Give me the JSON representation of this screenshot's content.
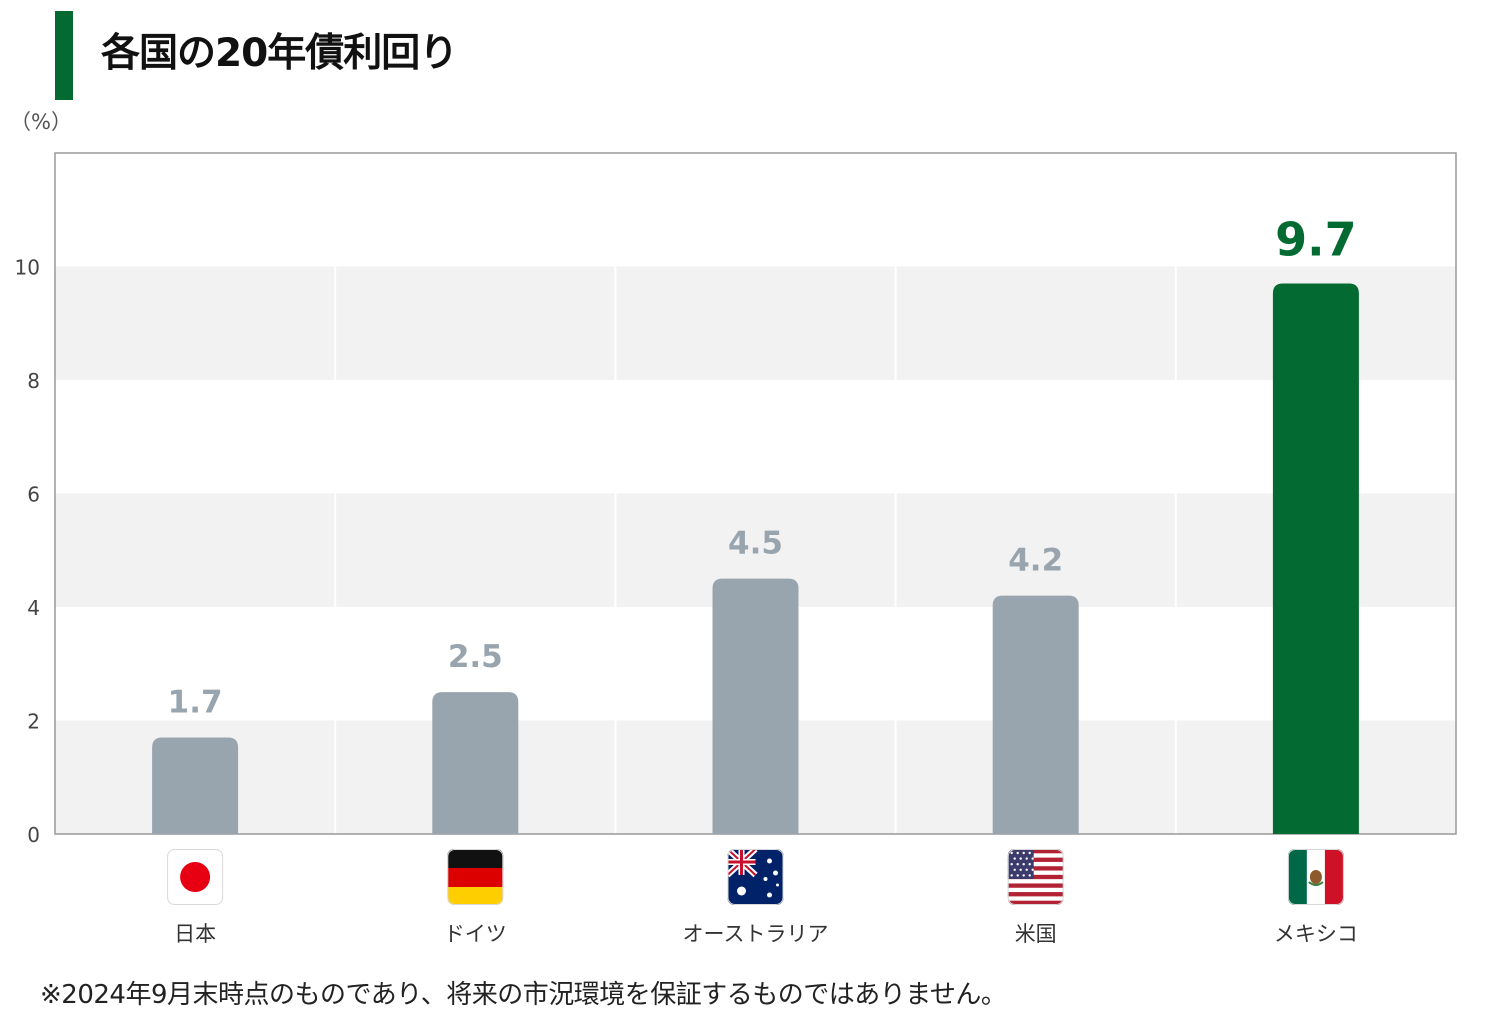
{
  "title": "各国の20年債利回り",
  "unit_label": "（%）",
  "footnote": "※2024年9月末時点のものであり、将来の市況環境を保証するものではありません。",
  "colors": {
    "accent": "#036b32",
    "bar_default": "#99a5ae",
    "value_default": "#99a5ae",
    "band": "#f2f2f2"
  },
  "chart_data": {
    "type": "bar",
    "categories": [
      "日本",
      "ドイツ",
      "オーストラリア",
      "米国",
      "メキシコ"
    ],
    "flags": [
      "japan-flag-icon",
      "germany-flag-icon",
      "australia-flag-icon",
      "usa-flag-icon",
      "mexico-flag-icon"
    ],
    "values": [
      1.7,
      2.5,
      4.5,
      4.2,
      9.7
    ],
    "value_labels": [
      "1.7",
      "2.5",
      "4.5",
      "4.2",
      "9.7"
    ],
    "highlight_index": 4,
    "ylim": [
      0,
      12
    ],
    "yticks": [
      0,
      2,
      4,
      6,
      8,
      10
    ],
    "ylabel": "（%）",
    "grid": "alternating horizontal bands"
  }
}
